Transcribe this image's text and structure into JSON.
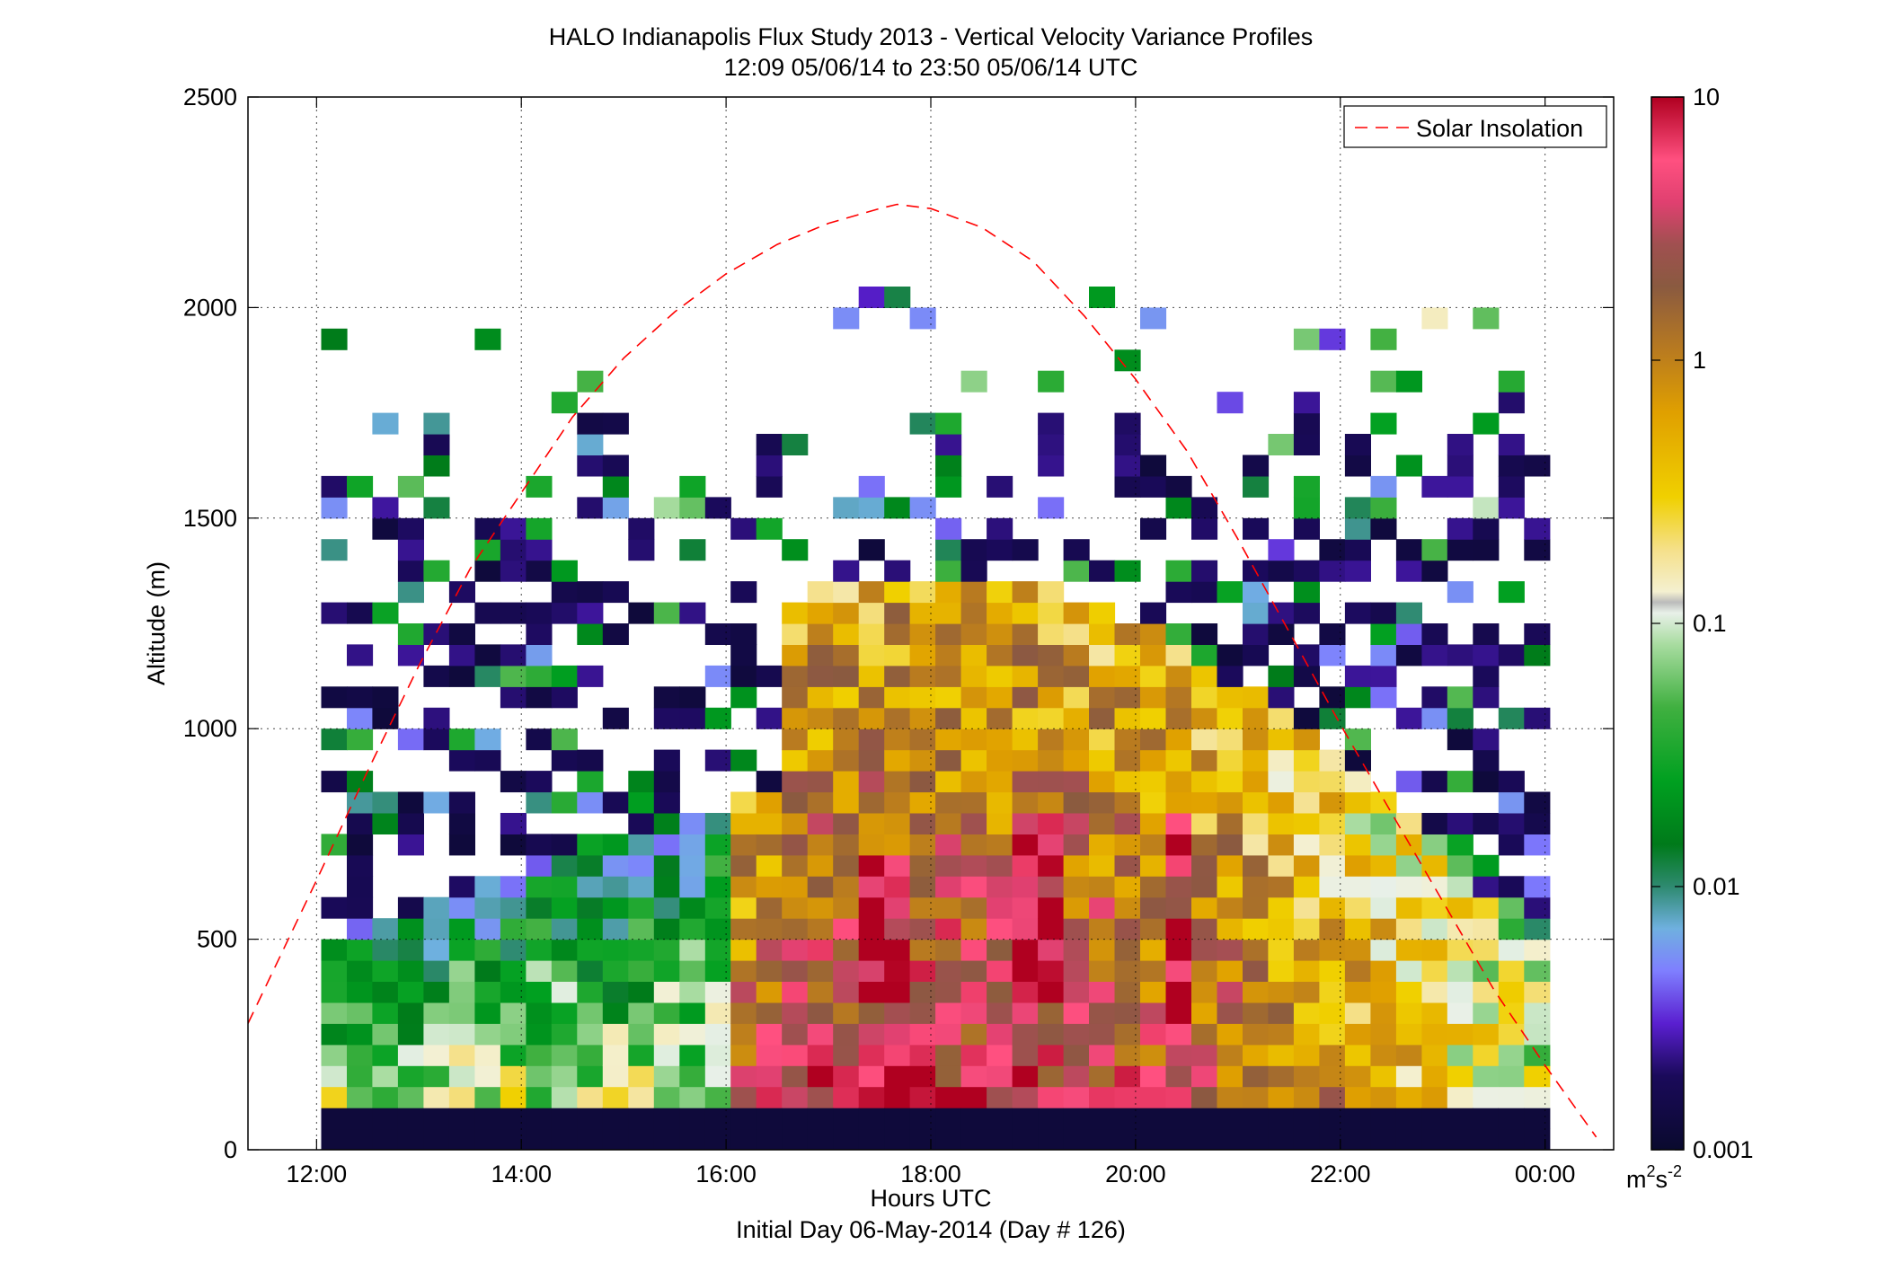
{
  "chart_data": {
    "type": "heatmap",
    "title": "HALO Indianapolis Flux Study 2013 - Vertical Velocity Variance Profiles",
    "subtitle": "12:09 05/06/14 to 23:50 05/06/14  UTC",
    "xlabel": "Hours UTC",
    "xlabel2": "Initial Day 06-May-2014 (Day # 126)",
    "ylabel": "Altitude (m)",
    "x_ticks": [
      12,
      14,
      16,
      18,
      20,
      22,
      24
    ],
    "x_tick_labels": [
      "12:00",
      "14:00",
      "16:00",
      "18:00",
      "20:00",
      "22:00",
      "00:00"
    ],
    "xlim": [
      11.33,
      24.67
    ],
    "ylim": [
      0,
      2500
    ],
    "y_ticks": [
      0,
      500,
      1000,
      1500,
      2000,
      2500
    ],
    "y_tick_labels": [
      "0",
      "500",
      "1000",
      "1500",
      "2000",
      "2500"
    ],
    "grid": true,
    "colorbar": {
      "scale": "log",
      "range": [
        0.001,
        10
      ],
      "ticks": [
        0.001,
        0.01,
        0.1,
        1,
        10
      ],
      "tick_labels": [
        "0.001",
        "0.01",
        "0.1",
        "1",
        "10"
      ],
      "unit_label": "m²s⁻²",
      "unit_base": "m",
      "unit_sup1": "2",
      "unit_mid": "s",
      "unit_sup2": "-2"
    },
    "series": [
      {
        "name": "Solar Insolation",
        "type": "line",
        "style": "dashed",
        "color": "#ff0000",
        "x": [
          11.33,
          12.0,
          12.5,
          13.0,
          13.5,
          14.0,
          14.5,
          15.0,
          15.5,
          16.0,
          16.5,
          17.0,
          17.5,
          17.67,
          18.0,
          18.5,
          19.0,
          19.5,
          20.0,
          20.5,
          21.0,
          21.5,
          22.0,
          22.5,
          23.0,
          23.5,
          24.0,
          24.5
        ],
        "y": [
          300,
          640,
          900,
          1150,
          1380,
          1560,
          1740,
          1880,
          1990,
          2080,
          2150,
          2200,
          2235,
          2245,
          2235,
          2190,
          2110,
          1980,
          1830,
          1660,
          1450,
          1230,
          1010,
          800,
          590,
          380,
          200,
          30
        ]
      }
    ],
    "heatmap_bin_hours": 0.25,
    "heatmap_bin_meters": 50,
    "heatmap_x_start": 12.17,
    "heatmap_x_end": 23.83,
    "heatmap_y_start": 50,
    "heatmap_max_altitude": 2050
  }
}
